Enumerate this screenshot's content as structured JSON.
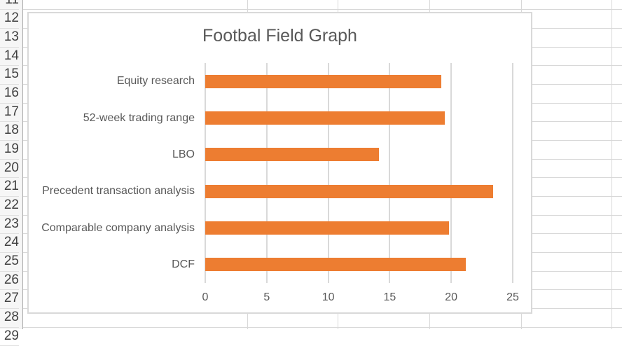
{
  "spreadsheet": {
    "row_numbers": [
      "11",
      "12",
      "13",
      "14",
      "15",
      "16",
      "17",
      "18",
      "19",
      "20",
      "21",
      "22",
      "23",
      "24",
      "25",
      "26",
      "27",
      "28",
      "29"
    ],
    "grid_color": "#d8d8d8",
    "header_bg": "#f6f6f6",
    "header_separator_color": "#ababab",
    "header_text_color": "#404040"
  },
  "chart_data": {
    "type": "bar",
    "orientation": "horizontal",
    "title": "Footbal Field Graph",
    "categories": [
      "Equity research",
      "52-week trading range",
      "LBO",
      "Precedent transaction analysis",
      "Comparable company analysis",
      "DCF"
    ],
    "values": [
      19.2,
      19.5,
      14.1,
      23.4,
      19.8,
      21.2
    ],
    "xlabel": "",
    "ylabel": "",
    "xlim": [
      0,
      25
    ],
    "xticks": [
      0,
      5,
      10,
      15,
      20,
      25
    ],
    "grid": "vertical",
    "legend": "none",
    "bar_color": "#ED7D31",
    "gridline_color": "#D9D9D9",
    "text_color": "#595959",
    "background_color": "#FFFFFF"
  }
}
